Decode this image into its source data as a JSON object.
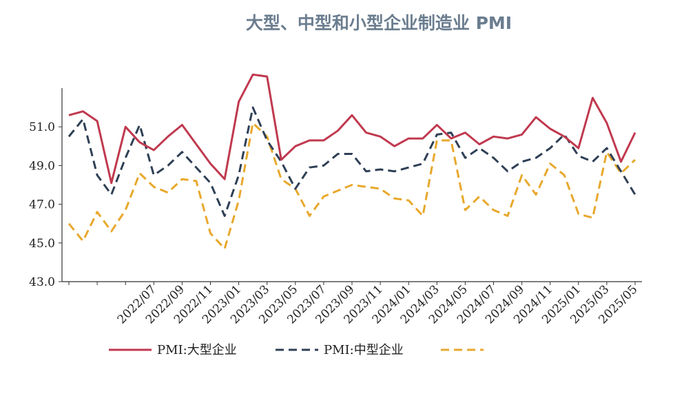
{
  "chart_data": {
    "type": "line",
    "title": "大型、中型和小型企业制造业 PMI",
    "ylim": [
      43.0,
      53.0
    ],
    "y_ticks": [
      "43.0",
      "45.0",
      "47.0",
      "49.0",
      "51.0"
    ],
    "x_tick_labels": [
      "",
      "",
      "",
      "2022/07",
      "2022/09",
      "2022/11",
      "2023/01",
      "2023/03",
      "2023/05",
      "2023/07",
      "2023/09",
      "2023/11",
      "2024/01",
      "2024/03",
      "2024/05",
      "2024/07",
      "2024/09",
      "2024/11",
      "2025/01",
      "2025/03",
      "2025/05"
    ],
    "grid": false,
    "legend_position": "bottom",
    "series": [
      {
        "name": "PMI:大型企业",
        "color": "#c0394f",
        "dash": "solid",
        "values": [
          51.6,
          51.8,
          51.3,
          48.1,
          51.0,
          50.2,
          49.8,
          50.5,
          51.1,
          50.1,
          49.1,
          48.3,
          52.3,
          53.7,
          53.6,
          49.3,
          50.0,
          50.3,
          50.3,
          50.8,
          51.6,
          50.7,
          50.5,
          50.0,
          50.4,
          50.4,
          51.1,
          50.4,
          50.7,
          50.1,
          50.5,
          50.4,
          50.6,
          51.5,
          50.9,
          50.5,
          49.9,
          52.5,
          51.2,
          49.2,
          50.7
        ]
      },
      {
        "name": "PMI:中型企业",
        "color": "#2e3f55",
        "dash": "dashed",
        "values": [
          50.5,
          51.4,
          48.5,
          47.5,
          49.4,
          51.1,
          48.5,
          49.0,
          49.7,
          48.9,
          48.1,
          46.4,
          48.5,
          52.0,
          50.3,
          49.2,
          47.8,
          48.9,
          49.0,
          49.6,
          49.6,
          48.7,
          48.8,
          48.7,
          48.9,
          49.1,
          50.6,
          50.7,
          49.4,
          49.9,
          49.4,
          48.7,
          49.2,
          49.4,
          49.9,
          50.6,
          49.5,
          49.2,
          49.9,
          48.7,
          47.5
        ]
      },
      {
        "name": "",
        "color": "#e8a82c",
        "dash": "dashed",
        "values": [
          46.0,
          45.1,
          46.6,
          45.6,
          46.7,
          48.6,
          47.9,
          47.6,
          48.3,
          48.2,
          45.5,
          44.7,
          47.2,
          51.2,
          50.5,
          48.3,
          47.8,
          46.4,
          47.4,
          47.7,
          48.0,
          47.9,
          47.8,
          47.3,
          47.2,
          46.4,
          50.3,
          50.3,
          46.7,
          47.4,
          46.7,
          46.4,
          48.5,
          47.5,
          49.1,
          48.5,
          46.5,
          46.3,
          49.7,
          48.6,
          49.3
        ]
      }
    ]
  }
}
